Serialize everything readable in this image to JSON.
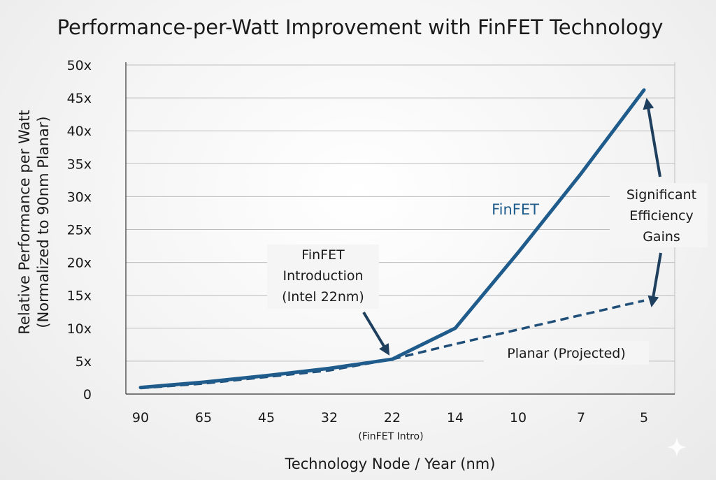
{
  "chart_data": {
    "type": "line",
    "title": "Performance-per-Watt Improvement with FinFET Technology",
    "xlabel": "Technology Node / Year (nm)",
    "ylabel": [
      "Relative Performance per Watt",
      "(Normalized to 90nm Planar)"
    ],
    "categories": [
      "90",
      "65",
      "45",
      "32",
      "22",
      "14",
      "10",
      "7",
      "5"
    ],
    "category_note": {
      "category": "22",
      "text": "(FinFET Intro)"
    },
    "y_ticks": [
      "0",
      "5x",
      "10x",
      "15x",
      "20x",
      "25x",
      "30x",
      "35x",
      "40x",
      "45x",
      "50x"
    ],
    "ylim": [
      0,
      50
    ],
    "grid": true,
    "series": [
      {
        "name": "FinFET",
        "style": "solid",
        "color": "#1f5c8c",
        "values": [
          1,
          1.8,
          2.8,
          3.9,
          5.3,
          10,
          21.5,
          33.5,
          46.2
        ]
      },
      {
        "name": "Planar (Projected)",
        "style": "dashed",
        "color": "#1f4f78",
        "x_start_index": 4,
        "values": [
          null,
          null,
          null,
          null,
          5.3,
          7.6,
          9.8,
          12,
          14.2
        ]
      }
    ],
    "planar_history": [
      0.9,
      1.6,
      2.6,
      3.6,
      5.3
    ],
    "annotations": {
      "finfet_intro": [
        "FinFET",
        "Introduction",
        "(Intel 22nm)"
      ],
      "gains": [
        "Significant",
        "Efficiency",
        "Gains"
      ]
    }
  },
  "colors": {
    "finfet": "#1f5c8c",
    "planar": "#1f4f78",
    "grid": "#bdbdbd",
    "axis": "#333333"
  }
}
